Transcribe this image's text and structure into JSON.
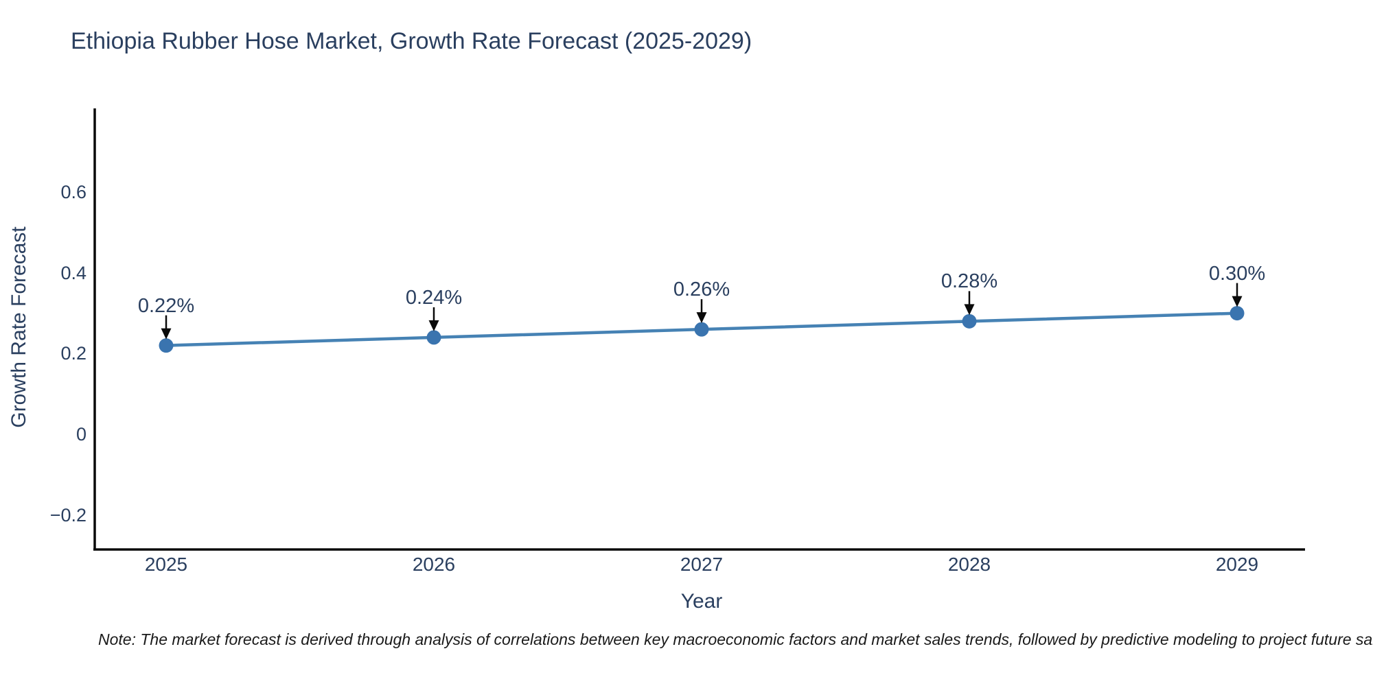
{
  "page": {
    "note": "Note: The market forecast is derived through analysis of correlations between key macroeconomic factors and market sales trends, followed by predictive modeling to project future sales"
  },
  "chart_data": {
    "type": "line",
    "title": "Ethiopia Rubber Hose Market, Growth Rate Forecast (2025-2029)",
    "xlabel": "Year",
    "ylabel": "Growth Rate Forecast",
    "categories": [
      "2025",
      "2026",
      "2027",
      "2028",
      "2029"
    ],
    "series": [
      {
        "name": "Growth Rate Forecast",
        "values": [
          0.22,
          0.24,
          0.26,
          0.28,
          0.3
        ]
      }
    ],
    "point_labels": [
      "0.22%",
      "0.24%",
      "0.26%",
      "0.28%",
      "0.30%"
    ],
    "ytick_labels": [
      "0.6",
      "0.4",
      "0.2",
      "0",
      "−0.2"
    ],
    "ytick_values": [
      0.6,
      0.4,
      0.2,
      0,
      -0.2
    ],
    "ylim": [
      -0.29,
      0.8
    ],
    "grid": false,
    "legend_position": "none",
    "annotation_style": "down-arrow-to-point",
    "colors": {
      "line": "#4682b4",
      "marker": "#3a74af",
      "axis": "#0a0a0a",
      "arrow": "#0a0a0a",
      "text": "#2a3f5f"
    }
  }
}
